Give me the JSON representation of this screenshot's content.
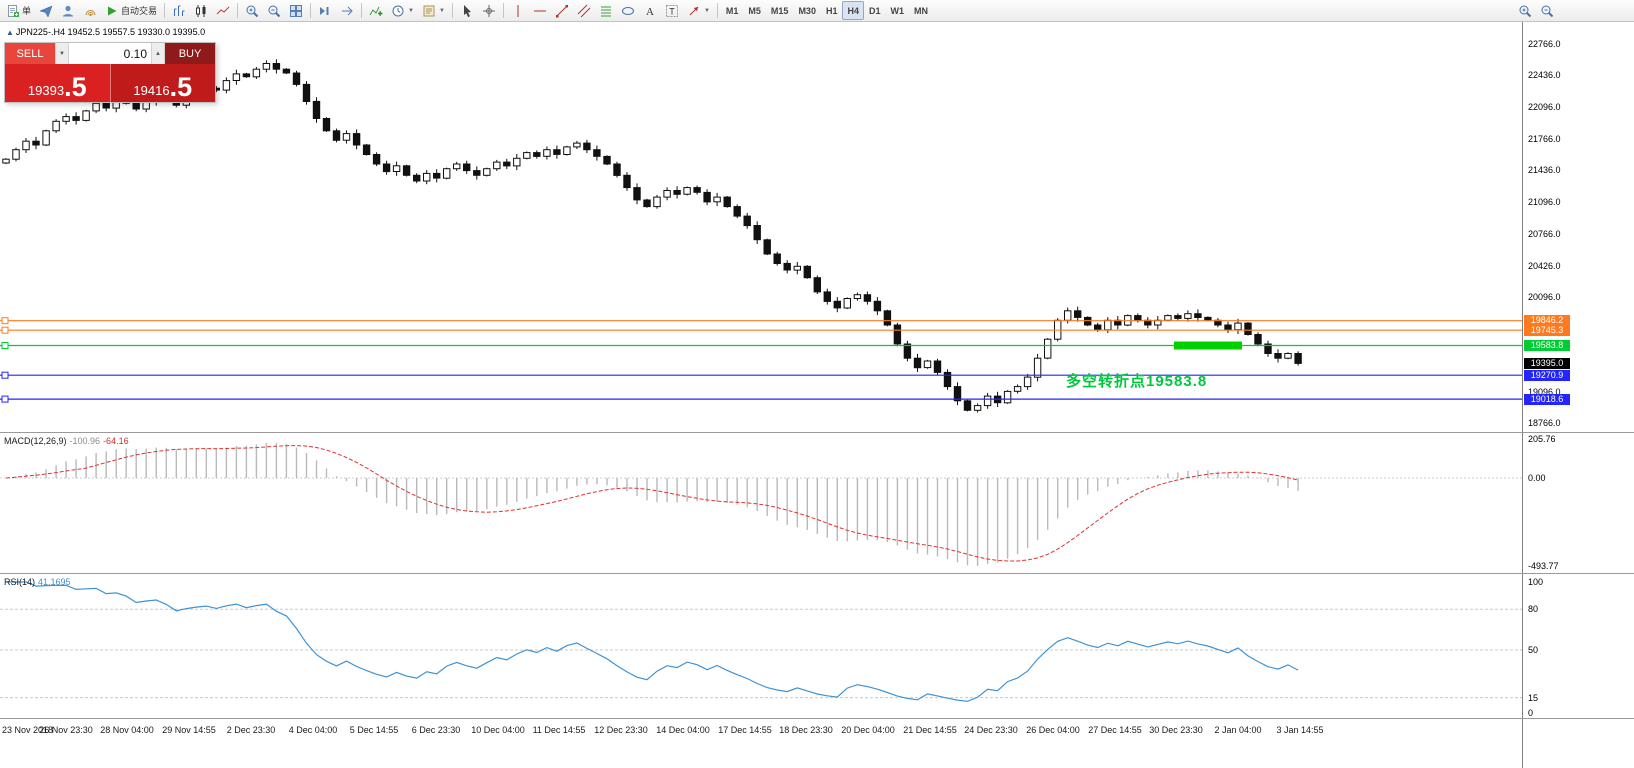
{
  "toolbar": {
    "items": [
      {
        "name": "new-order-button",
        "glyph": "doc",
        "label": "单"
      },
      {
        "name": "send-button",
        "glyph": "send"
      },
      {
        "name": "profile-button",
        "glyph": "profile"
      },
      {
        "name": "signal-button",
        "glyph": "signal"
      },
      {
        "name": "autotrading-button",
        "glyph": "play",
        "label": "自动交易"
      },
      {
        "sep": true
      },
      {
        "name": "bar-chart-button",
        "glyph": "bars"
      },
      {
        "name": "candlestick-chart-button",
        "glyph": "candles"
      },
      {
        "name": "line-chart-button",
        "glyph": "line"
      },
      {
        "sep": true
      },
      {
        "name": "zoom-in-button",
        "glyph": "zoomin"
      },
      {
        "name": "zoom-out-button",
        "glyph": "zoomout"
      },
      {
        "name": "tile-windows-button",
        "glyph": "tile"
      },
      {
        "sep": true
      },
      {
        "name": "auto-scroll-button",
        "glyph": "step"
      },
      {
        "name": "chart-shift-button",
        "glyph": "shift"
      },
      {
        "sep": true
      },
      {
        "name": "indicators-button",
        "glyph": "indicator"
      },
      {
        "name": "periods-button",
        "glyph": "clock",
        "caret": true
      },
      {
        "name": "templates-button",
        "glyph": "template",
        "caret": true
      },
      {
        "sep": true
      },
      {
        "name": "cursor-button",
        "glyph": "cursor"
      },
      {
        "name": "crosshair-button",
        "glyph": "crosshair"
      },
      {
        "sep": true
      },
      {
        "name": "vertical-line-button",
        "glyph": "vline"
      },
      {
        "name": "horizontal-line-button",
        "glyph": "hline"
      },
      {
        "name": "trendline-button",
        "glyph": "trend"
      },
      {
        "name": "channel-button",
        "glyph": "channel"
      },
      {
        "name": "fibonacci-button",
        "glyph": "fibo"
      },
      {
        "name": "shapes-button",
        "glyph": "ellipse"
      },
      {
        "name": "text-button",
        "glyph": "textA"
      },
      {
        "name": "label-button",
        "glyph": "textT"
      },
      {
        "name": "arrows-button",
        "glyph": "arrow",
        "caret": true
      },
      {
        "sep": true
      },
      {
        "name": "tf-m1-button",
        "label": "M1",
        "tf": true
      },
      {
        "name": "tf-m5-button",
        "label": "M5",
        "tf": true
      },
      {
        "name": "tf-m15-button",
        "label": "M15",
        "tf": true
      },
      {
        "name": "tf-m30-button",
        "label": "M30",
        "tf": true
      },
      {
        "name": "tf-h1-button",
        "label": "H1",
        "tf": true
      },
      {
        "name": "tf-h4-button",
        "label": "H4",
        "tf": true,
        "pressed": true
      },
      {
        "name": "tf-d1-button",
        "label": "D1",
        "tf": true
      },
      {
        "name": "tf-w1-button",
        "label": "W1",
        "tf": true
      },
      {
        "name": "tf-mn-button",
        "label": "MN",
        "tf": true
      }
    ],
    "right_items": [
      {
        "name": "zoom-in-right-button",
        "glyph": "zoomin"
      },
      {
        "name": "zoom-out-right-button",
        "glyph": "zoomout"
      }
    ],
    "active_timeframe": "H4"
  },
  "chart_header": {
    "title": "JPN225-.H4  19452.5 19557.5 19330.0 19395.0"
  },
  "one_click_trading": {
    "sell_label": "SELL",
    "buy_label": "BUY",
    "volume": "0.10",
    "sell_price": "19393",
    "sell_price_frac": ".5",
    "buy_price": "19416",
    "buy_price_frac": ".5"
  },
  "annotation": {
    "text": "多空转折点19583.8"
  },
  "chart_data": {
    "type": "candlestick",
    "symbol": "JPN225-",
    "timeframe": "H4",
    "price_max": 22766.0,
    "price_min": 18766.0,
    "price_axis_ticks": [
      "22766.0",
      "22436.0",
      "22096.0",
      "21766.0",
      "21436.0",
      "21096.0",
      "20766.0",
      "20426.0",
      "20096.0",
      "19096.0",
      "18766.0"
    ],
    "x_labels": [
      "23 Nov 2018",
      "26 Nov 23:30",
      "28 Nov 04:00",
      "29 Nov 14:55",
      "2 Dec 23:30",
      "4 Dec 04:00",
      "5 Dec 14:55",
      "6 Dec 23:30",
      "10 Dec 04:00",
      "11 Dec 14:55",
      "12 Dec 23:30",
      "14 Dec 04:00",
      "17 Dec 14:55",
      "18 Dec 23:30",
      "20 Dec 04:00",
      "21 Dec 14:55",
      "24 Dec 23:30",
      "26 Dec 04:00",
      "27 Dec 14:55",
      "30 Dec 23:30",
      "2 Jan 04:00",
      "3 Jan 14:55"
    ],
    "closes": [
      21550,
      21650,
      21740,
      21700,
      21850,
      21950,
      22000,
      21960,
      22060,
      22140,
      22090,
      22170,
      22140,
      22080,
      22160,
      22220,
      22180,
      22120,
      22200,
      22260,
      22300,
      22280,
      22380,
      22450,
      22420,
      22500,
      22560,
      22500,
      22460,
      22340,
      22160,
      21980,
      21850,
      21750,
      21820,
      21700,
      21600,
      21500,
      21420,
      21480,
      21380,
      21320,
      21400,
      21350,
      21450,
      21500,
      21430,
      21380,
      21450,
      21520,
      21480,
      21560,
      21620,
      21580,
      21650,
      21600,
      21680,
      21720,
      21650,
      21580,
      21500,
      21380,
      21250,
      21120,
      21050,
      21150,
      21220,
      21180,
      21250,
      21200,
      21100,
      21150,
      21050,
      20950,
      20850,
      20700,
      20550,
      20450,
      20380,
      20420,
      20300,
      20150,
      20050,
      19980,
      20080,
      20120,
      20050,
      19950,
      19800,
      19600,
      19450,
      19350,
      19420,
      19300,
      19150,
      19000,
      18900,
      18950,
      19050,
      18980,
      19100,
      19150,
      19250,
      19450,
      19650,
      19850,
      19950,
      19880,
      19800,
      19750,
      19850,
      19800,
      19900,
      19850,
      19800,
      19850,
      19900,
      19870,
      19920,
      19880,
      19850,
      19800,
      19750,
      19820,
      19700,
      19600,
      19500,
      19450,
      19500,
      19395
    ],
    "hlines": [
      {
        "price": 19846.2,
        "label": "19846.2",
        "color": "#ff7a1e"
      },
      {
        "price": 19745.3,
        "label": "19745.3",
        "color": "#ff7a1e"
      },
      {
        "price": 19583.8,
        "label": "19583.8",
        "color": "#00cc33"
      },
      {
        "price": 19270.9,
        "label": "19270.9",
        "color": "#2424ff"
      },
      {
        "price": 19018.6,
        "label": "19018.6",
        "color": "#2424ff"
      }
    ],
    "current_price": {
      "value": 19395.0,
      "label": "19395.0"
    },
    "turning_segment": {
      "price": 19583.8,
      "from_candle": 117,
      "to_candle": 123
    },
    "macd": {
      "label": "MACD(12,26,9)",
      "main_value": "-100.96",
      "signal_value": "-64.16",
      "params": [
        12,
        26,
        9
      ],
      "axis_ticks": [
        "205.76",
        "0.00",
        "-493.77"
      ]
    },
    "rsi": {
      "label": "RSI(14)",
      "value": "41.1695",
      "period": 14,
      "axis_ticks": [
        "100",
        "80",
        "50",
        "15",
        "0"
      ],
      "levels": [
        80,
        50,
        15
      ]
    }
  }
}
